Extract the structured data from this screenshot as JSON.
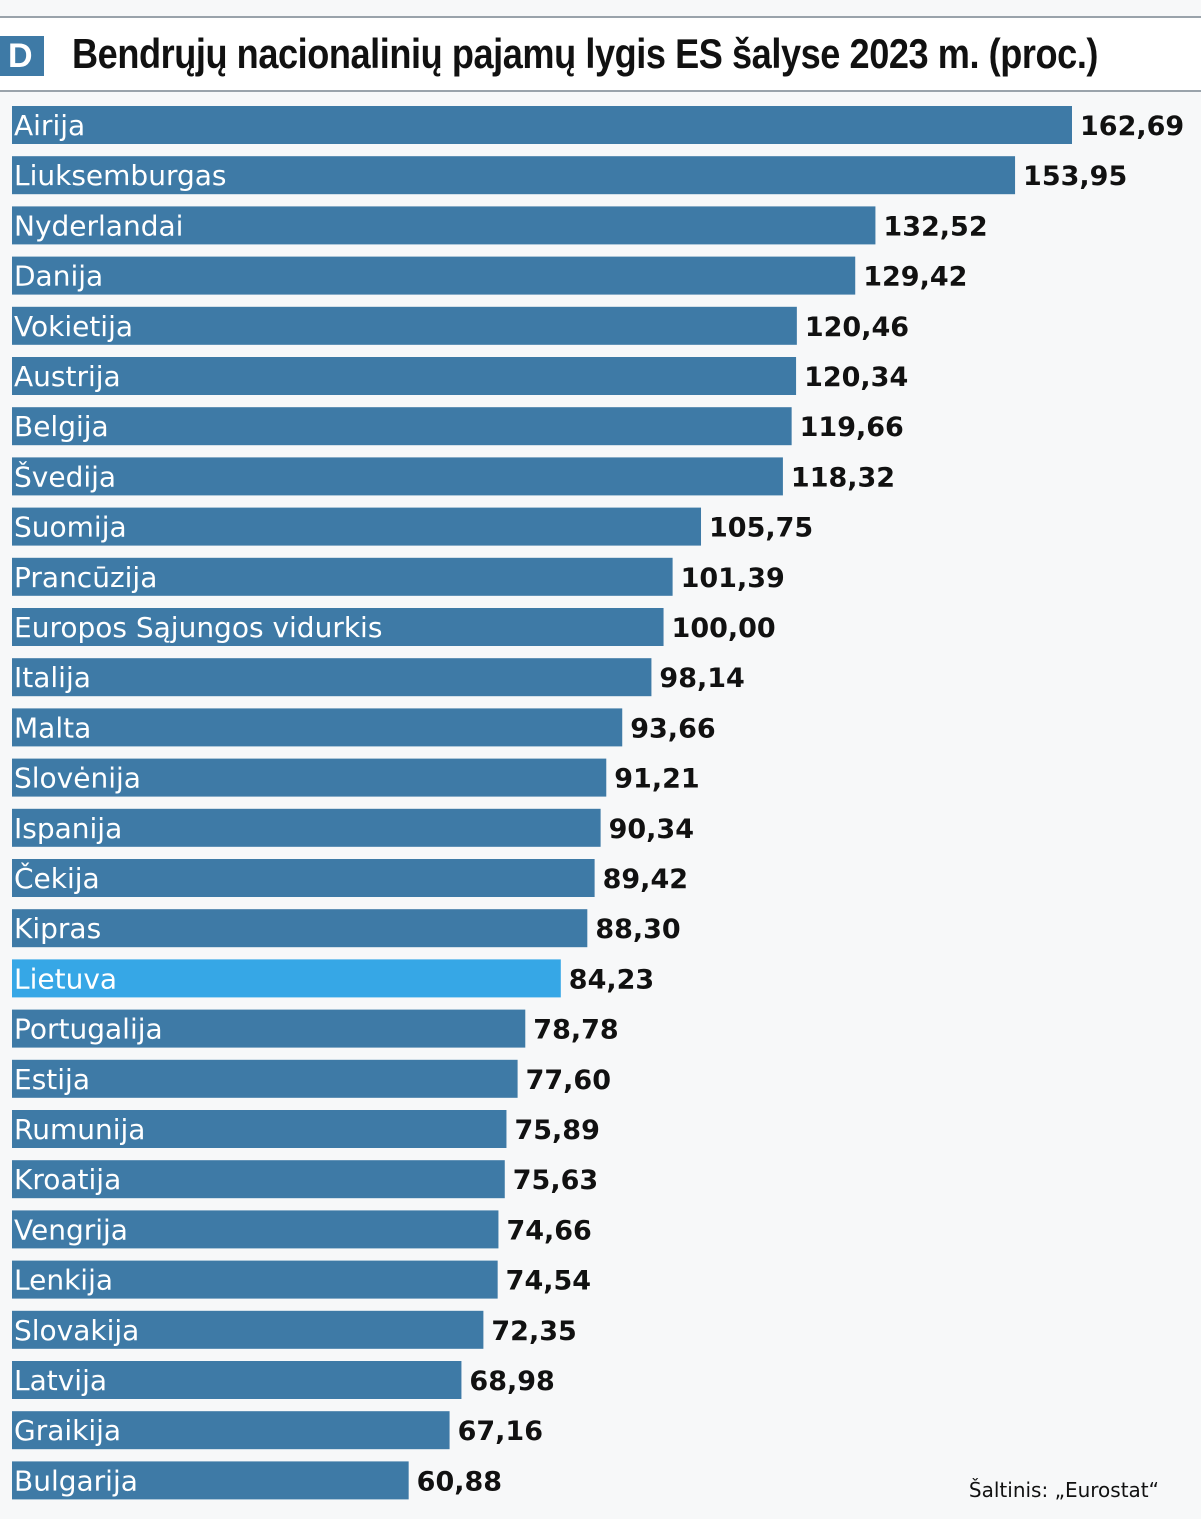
{
  "header": {
    "logo_letter": "D",
    "title": "Bendrųjų nacionalinių pajamų lygis ES šalyse 2023 m. (proc.)"
  },
  "source": "Šaltinis: „Eurostat“",
  "colors": {
    "bar": "#3e7aa6",
    "highlight": "#36a7e6",
    "accent": "#3e7aa6"
  },
  "chart_data": {
    "type": "bar",
    "orientation": "horizontal",
    "title": "Bendrųjų nacionalinių pajamų lygis ES šalyse 2023 m. (proc.)",
    "categories": [
      "Airija",
      "Liuksemburgas",
      "Nyderlandai",
      "Danija",
      "Vokietija",
      "Austrija",
      "Belgija",
      "Švedija",
      "Suomija",
      "Prancūzija",
      "Europos Sąjungos vidurkis",
      "Italija",
      "Malta",
      "Slovėnija",
      "Ispanija",
      "Čekija",
      "Kipras",
      "Lietuva",
      "Portugalija",
      "Estija",
      "Rumunija",
      "Kroatija",
      "Vengrija",
      "Lenkija",
      "Slovakija",
      "Latvija",
      "Graikija",
      "Bulgarija"
    ],
    "values": [
      162.69,
      153.95,
      132.52,
      129.42,
      120.46,
      120.34,
      119.66,
      118.32,
      105.75,
      101.39,
      100.0,
      98.14,
      93.66,
      91.21,
      90.34,
      89.42,
      88.3,
      84.23,
      78.78,
      77.6,
      75.89,
      75.63,
      74.66,
      74.54,
      72.35,
      68.98,
      67.16,
      60.88
    ],
    "value_labels": [
      "162,69",
      "153,95",
      "132,52",
      "129,42",
      "120,46",
      "120,34",
      "119,66",
      "118,32",
      "105,75",
      "101,39",
      "100,00",
      "98,14",
      "93,66",
      "91,21",
      "90,34",
      "89,42",
      "88,30",
      "84,23",
      "78,78",
      "77,60",
      "75,89",
      "75,63",
      "74,66",
      "74,54",
      "72,35",
      "68,98",
      "67,16",
      "60,88"
    ],
    "highlighted": "Lietuva",
    "xlim": [
      0,
      162.69
    ],
    "grid": false,
    "legend": "none"
  }
}
